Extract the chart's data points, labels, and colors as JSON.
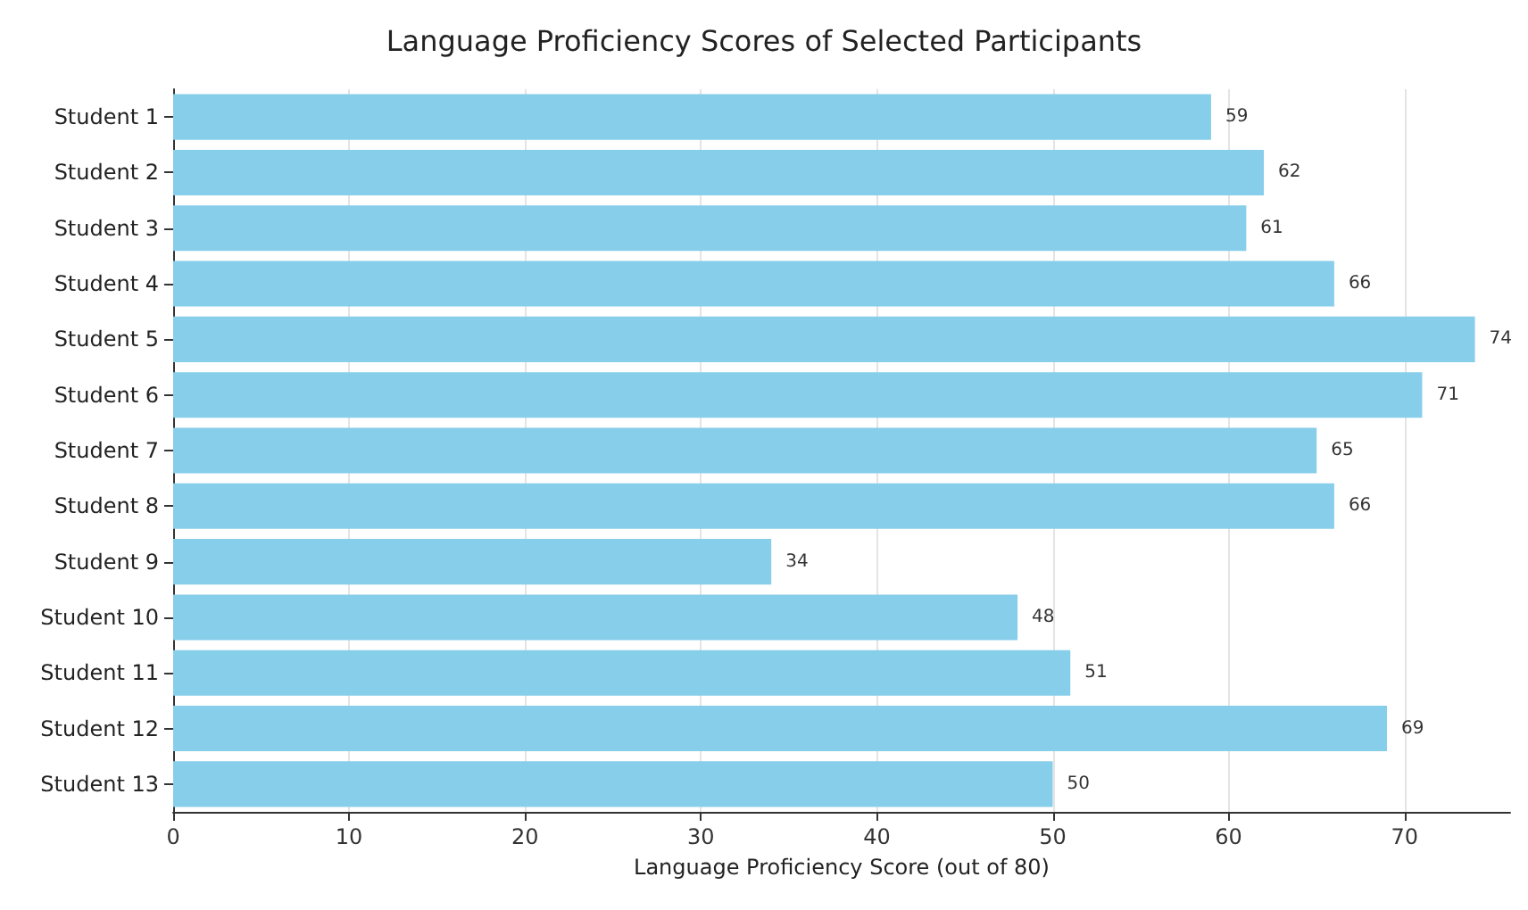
{
  "chart_data": {
    "type": "bar",
    "orientation": "horizontal",
    "title": "Language Proficiency Scores of Selected Participants",
    "xlabel": "Language Proficiency Score (out of 80)",
    "categories": [
      "Student 1",
      "Student 2",
      "Student 3",
      "Student 4",
      "Student 5",
      "Student 6",
      "Student 7",
      "Student 8",
      "Student 9",
      "Student 10",
      "Student 11",
      "Student 12",
      "Student 13"
    ],
    "values": [
      59,
      62,
      61,
      66,
      74,
      71,
      65,
      66,
      34,
      48,
      51,
      69,
      50
    ],
    "color": "#87ceeb",
    "xlim": [
      0,
      76
    ],
    "xticks": [
      0,
      10,
      20,
      30,
      40,
      50,
      60,
      70
    ],
    "grid": "x",
    "data_labels": true
  }
}
